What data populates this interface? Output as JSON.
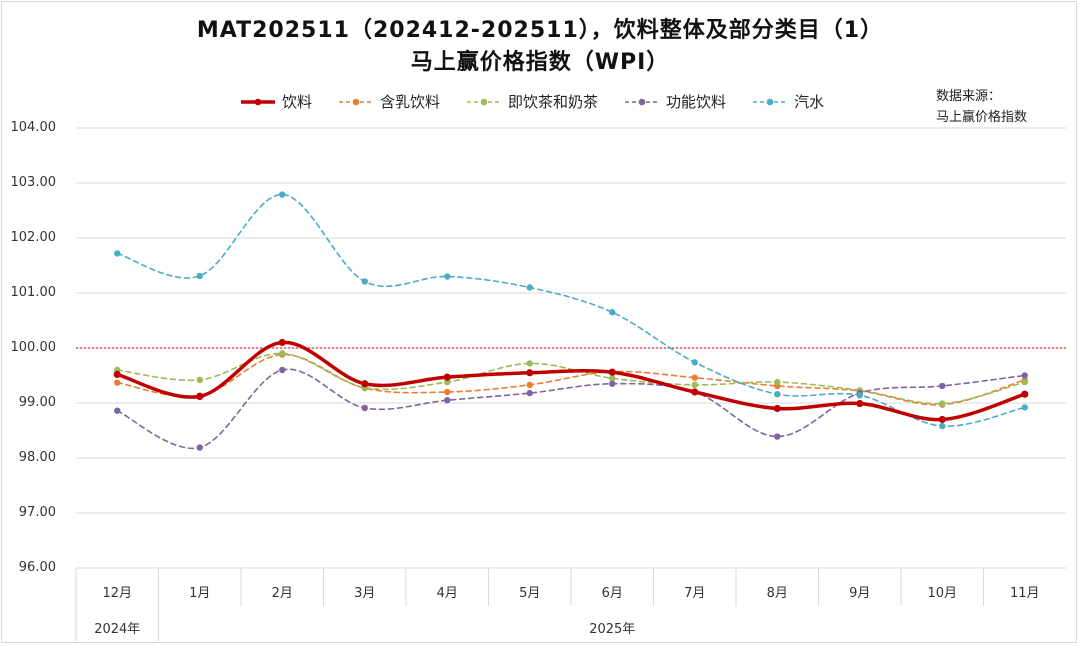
{
  "chart_data": {
    "type": "line",
    "title": "MAT202511（202412-202511），饮料整体及部分类目（1）",
    "subtitle": "马上赢价格指数（WPI）",
    "source_label": "数据来源：",
    "source_name": "马上赢价格指数",
    "categories": [
      "12月",
      "1月",
      "2月",
      "3月",
      "4月",
      "5月",
      "6月",
      "7月",
      "8月",
      "9月",
      "10月",
      "11月"
    ],
    "year_groups": [
      {
        "label": "2024年",
        "start": 0,
        "end": 0
      },
      {
        "label": "2025年",
        "start": 1,
        "end": 11
      }
    ],
    "ylim": [
      96,
      104
    ],
    "ytick_step": 1,
    "ytick_labels": [
      "96.00",
      "97.00",
      "98.00",
      "99.00",
      "100.00",
      "101.00",
      "102.00",
      "103.00",
      "104.00"
    ],
    "reference_line": 100,
    "grid": true,
    "legend_position": "top",
    "series": [
      {
        "name": "饮料",
        "color": "#c00000",
        "style": "solid",
        "width": 3.5,
        "values": [
          99.52,
          99.12,
          100.1,
          99.35,
          99.47,
          99.55,
          99.56,
          99.2,
          98.9,
          98.99,
          98.7,
          99.16
        ]
      },
      {
        "name": "含乳饮料",
        "color": "#ed7d31",
        "style": "dashed",
        "width": 1.6,
        "values": [
          99.37,
          99.13,
          99.88,
          99.27,
          99.2,
          99.33,
          99.57,
          99.46,
          99.31,
          99.22,
          98.97,
          99.42
        ]
      },
      {
        "name": "即饮茶和奶茶",
        "color": "#9bbb59",
        "style": "dashed",
        "width": 1.6,
        "values": [
          99.6,
          99.42,
          99.9,
          99.28,
          99.38,
          99.72,
          99.45,
          99.33,
          99.38,
          99.23,
          98.99,
          99.38
        ]
      },
      {
        "name": "功能饮料",
        "color": "#8064a2",
        "style": "dashed",
        "width": 1.6,
        "values": [
          98.86,
          98.19,
          99.6,
          98.91,
          99.05,
          99.18,
          99.35,
          99.2,
          98.39,
          99.18,
          99.31,
          99.5
        ]
      },
      {
        "name": "汽水",
        "color": "#4bacc6",
        "style": "dashed",
        "width": 1.6,
        "values": [
          101.72,
          101.31,
          102.79,
          101.21,
          101.3,
          101.1,
          100.65,
          99.74,
          99.16,
          99.14,
          98.58,
          98.92
        ]
      }
    ]
  }
}
